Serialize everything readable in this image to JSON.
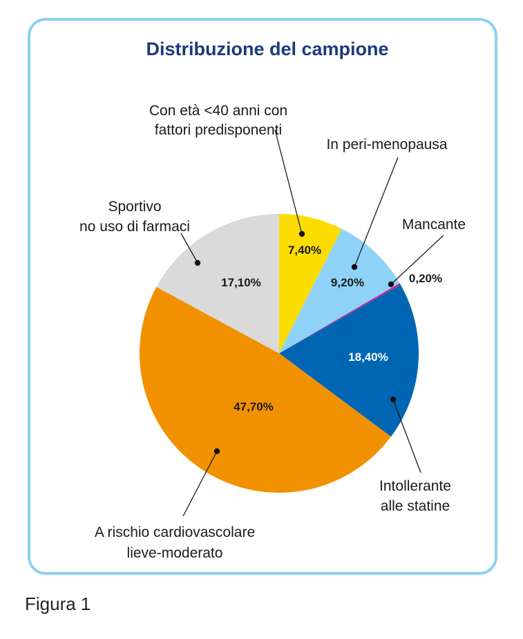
{
  "caption": "Figura 1",
  "chart_data": {
    "type": "pie",
    "title": "Distribuzione del campione",
    "start_angle_deg": 0,
    "direction": "clockwise",
    "slices": [
      {
        "label": "Con età <40 anni con fattori predisponenti",
        "label_lines": [
          "Con età <40 anni con",
          "fattori predisponenti"
        ],
        "value": 7.4,
        "value_label": "7,40%",
        "color": "#fddc00",
        "value_color": "#1a1a1a"
      },
      {
        "label": "In peri-menopausa",
        "label_lines": [
          "In peri-menopausa"
        ],
        "value": 9.2,
        "value_label": "9,20%",
        "color": "#8ed3f7",
        "value_color": "#1a1a1a"
      },
      {
        "label": "Mancante",
        "label_lines": [
          "Mancante"
        ],
        "value": 0.2,
        "value_label": "0,20%",
        "color": "#d6218d",
        "value_color": "#1a1a1a"
      },
      {
        "label": "Intollerante alle statine",
        "label_lines": [
          "Intollerante",
          "alle statine"
        ],
        "value": 18.4,
        "value_label": "18,40%",
        "color": "#0066b3",
        "value_color": "#ffffff"
      },
      {
        "label": "A rischio cardiovascolare lieve-moderato",
        "label_lines": [
          "A rischio cardiovascolare",
          "lieve-moderato"
        ],
        "value": 47.7,
        "value_label": "47,70%",
        "color": "#f29100",
        "value_color": "#1a1a1a"
      },
      {
        "label": "Sportivo no uso di farmaci",
        "label_lines": [
          "Sportivo",
          "no uso di farmaci"
        ],
        "value": 17.1,
        "value_label": "17,10%",
        "color": "#dadada",
        "value_color": "#1a1a1a"
      }
    ],
    "title_color": "#1b3a7a",
    "frame_color": "#8dd0f2"
  }
}
